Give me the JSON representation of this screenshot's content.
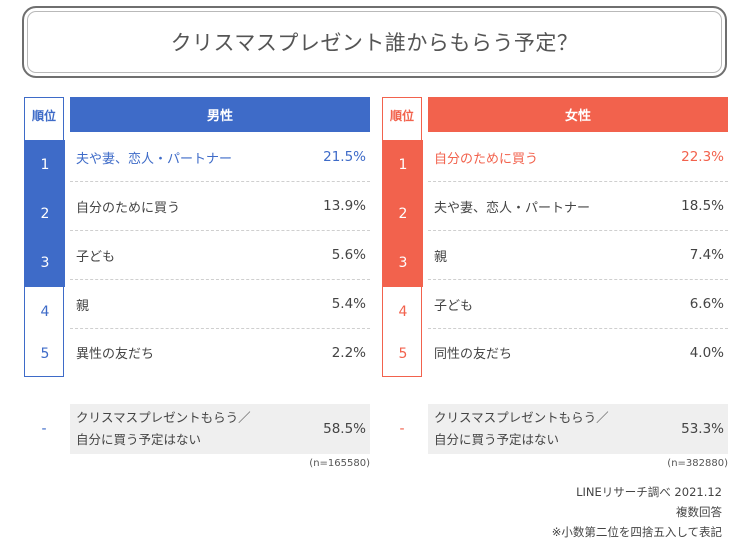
{
  "chart_data": {
    "type": "table",
    "title": "クリスマスプレゼント誰からもらう予定？",
    "rank_header": "順位",
    "colors": {
      "male": "#3e6bc8",
      "female": "#f2624d"
    },
    "panels": [
      {
        "name": "男性",
        "rows": [
          {
            "rank": "1",
            "label": "夫や妻、恋人・パートナー",
            "value": 21.5,
            "display": "21.5%"
          },
          {
            "rank": "2",
            "label": "自分のために買う",
            "value": 13.9,
            "display": "13.9%"
          },
          {
            "rank": "3",
            "label": "子ども",
            "value": 5.6,
            "display": "5.6%"
          },
          {
            "rank": "4",
            "label": "親",
            "value": 5.4,
            "display": "5.4%"
          },
          {
            "rank": "5",
            "label": "異性の友だち",
            "value": 2.2,
            "display": "2.2%"
          }
        ],
        "extra": {
          "rank": "-",
          "label_line1": "クリスマスプレゼントもらう／",
          "label_line2": "自分に買う予定はない",
          "value": 58.5,
          "display": "58.5%"
        },
        "n": "(n=165580)"
      },
      {
        "name": "女性",
        "rows": [
          {
            "rank": "1",
            "label": "自分のために買う",
            "value": 22.3,
            "display": "22.3%"
          },
          {
            "rank": "2",
            "label": "夫や妻、恋人・パートナー",
            "value": 18.5,
            "display": "18.5%"
          },
          {
            "rank": "3",
            "label": "親",
            "value": 7.4,
            "display": "7.4%"
          },
          {
            "rank": "4",
            "label": "子ども",
            "value": 6.6,
            "display": "6.6%"
          },
          {
            "rank": "5",
            "label": "同性の友だち",
            "value": 4.0,
            "display": "4.0%"
          }
        ],
        "extra": {
          "rank": "-",
          "label_line1": "クリスマスプレゼントもらう／",
          "label_line2": "自分に買う予定はない",
          "value": 53.3,
          "display": "53.3%"
        },
        "n": "(n=382880)"
      }
    ],
    "footer": [
      "LINEリサーチ調べ 2021.12",
      "複数回答",
      "※小数第二位を四捨五入して表記"
    ]
  }
}
